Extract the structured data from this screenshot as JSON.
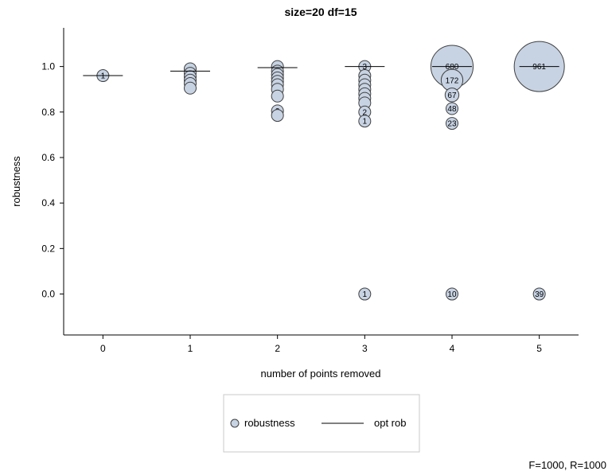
{
  "chart_data": {
    "type": "scatter",
    "title": "size=20 df=15",
    "xlabel": "number of points removed",
    "ylabel": "robustness",
    "footnote": "F=1000, R=1000",
    "x_ticks": [
      0,
      1,
      2,
      3,
      4,
      5
    ],
    "y_ticks": [
      "0.0",
      "0.2",
      "0.4",
      "0.6",
      "0.8",
      "1.0"
    ],
    "xlim": [
      -0.45,
      5.45
    ],
    "ylim": [
      -0.18,
      1.17
    ],
    "grid": false,
    "legend_position": "bottom",
    "colors": {
      "bubble_fill": "#c7d3e3",
      "bubble_stroke": "#404040",
      "line": "#000000"
    },
    "series": [
      {
        "name": "robustness",
        "kind": "bubble",
        "points": [
          {
            "x": 0,
            "y": 0.96,
            "count": 1,
            "label": "1"
          },
          {
            "x": 1,
            "y": 0.99,
            "count": 3,
            "label": ""
          },
          {
            "x": 1,
            "y": 0.97,
            "count": 3,
            "label": ""
          },
          {
            "x": 1,
            "y": 0.955,
            "count": 3,
            "label": ""
          },
          {
            "x": 1,
            "y": 0.94,
            "count": 3,
            "label": ""
          },
          {
            "x": 1,
            "y": 0.925,
            "count": 3,
            "label": ""
          },
          {
            "x": 1,
            "y": 0.905,
            "count": 3,
            "label": ""
          },
          {
            "x": 2,
            "y": 1.0,
            "count": 3,
            "label": ""
          },
          {
            "x": 2,
            "y": 0.98,
            "count": 3,
            "label": ""
          },
          {
            "x": 2,
            "y": 0.965,
            "count": 3,
            "label": ""
          },
          {
            "x": 2,
            "y": 0.95,
            "count": 3,
            "label": ""
          },
          {
            "x": 2,
            "y": 0.935,
            "count": 3,
            "label": ""
          },
          {
            "x": 2,
            "y": 0.92,
            "count": 3,
            "label": ""
          },
          {
            "x": 2,
            "y": 0.9,
            "count": 3,
            "label": ""
          },
          {
            "x": 2,
            "y": 0.87,
            "count": 3,
            "label": ""
          },
          {
            "x": 2,
            "y": 0.805,
            "count": 3,
            "label": "3"
          },
          {
            "x": 2,
            "y": 0.785,
            "count": 2,
            "label": ""
          },
          {
            "x": 3,
            "y": 1.0,
            "count": 3,
            "label": "3"
          },
          {
            "x": 3,
            "y": 0.96,
            "count": 3,
            "label": ""
          },
          {
            "x": 3,
            "y": 0.94,
            "count": 3,
            "label": ""
          },
          {
            "x": 3,
            "y": 0.92,
            "count": 3,
            "label": ""
          },
          {
            "x": 3,
            "y": 0.9,
            "count": 3,
            "label": ""
          },
          {
            "x": 3,
            "y": 0.88,
            "count": 3,
            "label": ""
          },
          {
            "x": 3,
            "y": 0.86,
            "count": 3,
            "label": ""
          },
          {
            "x": 3,
            "y": 0.84,
            "count": 3,
            "label": ""
          },
          {
            "x": 3,
            "y": 0.8,
            "count": 2,
            "label": "2"
          },
          {
            "x": 3,
            "y": 0.76,
            "count": 1,
            "label": "1"
          },
          {
            "x": 3,
            "y": 0.0,
            "count": 1,
            "label": "1"
          },
          {
            "x": 4,
            "y": 1.0,
            "count": 680,
            "label": "680"
          },
          {
            "x": 4,
            "y": 0.94,
            "count": 172,
            "label": "172"
          },
          {
            "x": 4,
            "y": 0.875,
            "count": 67,
            "label": "67"
          },
          {
            "x": 4,
            "y": 0.815,
            "count": 48,
            "label": "48"
          },
          {
            "x": 4,
            "y": 0.75,
            "count": 23,
            "label": "23"
          },
          {
            "x": 4,
            "y": 0.0,
            "count": 10,
            "label": "10"
          },
          {
            "x": 5,
            "y": 1.0,
            "count": 961,
            "label": "961"
          },
          {
            "x": 5,
            "y": 0.0,
            "count": 39,
            "label": "39"
          }
        ]
      },
      {
        "name": "opt rob",
        "kind": "segment",
        "points": [
          {
            "x": 0,
            "y": 0.96
          },
          {
            "x": 1,
            "y": 0.98
          },
          {
            "x": 2,
            "y": 0.995
          },
          {
            "x": 3,
            "y": 1.0
          },
          {
            "x": 4,
            "y": 1.0
          },
          {
            "x": 5,
            "y": 1.0
          }
        ]
      }
    ]
  },
  "legend": {
    "items": [
      {
        "label": "robustness",
        "symbol": "circle"
      },
      {
        "label": "opt rob",
        "symbol": "line"
      }
    ]
  }
}
